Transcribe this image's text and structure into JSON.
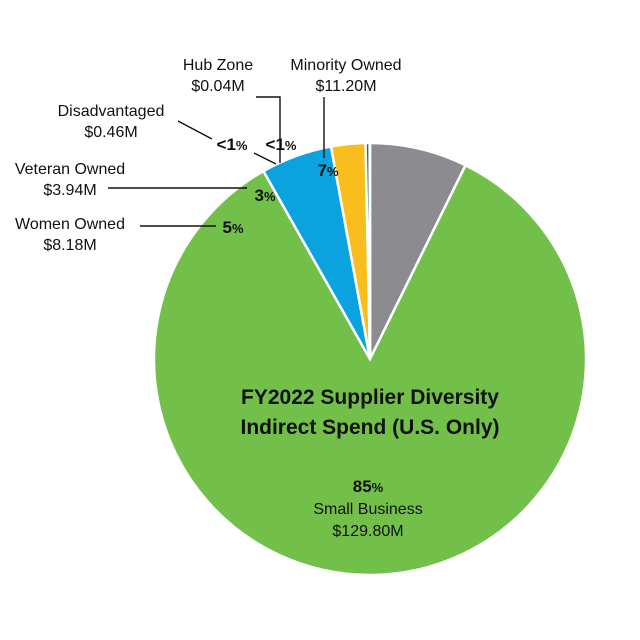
{
  "chart_data": {
    "type": "pie",
    "title": "FY2022 Supplier Diversity Indirect Spend (U.S. Only)",
    "title_lines": [
      "FY2022 Supplier Diversity",
      "Indirect Spend (U.S. Only)"
    ],
    "unit": "$M",
    "slices": [
      {
        "name": "Minority Owned",
        "value": 11.2,
        "amount_label": "$11.20M",
        "percent_label": "7",
        "color": "#8c8b8f"
      },
      {
        "name": "Small Business",
        "value": 129.8,
        "amount_label": "$129.80M",
        "percent_label": "85",
        "color": "#72bf4a"
      },
      {
        "name": "Women Owned",
        "value": 8.18,
        "amount_label": "$8.18M",
        "percent_label": "5",
        "color": "#0aa3df"
      },
      {
        "name": "Veteran Owned",
        "value": 3.94,
        "amount_label": "$3.94M",
        "percent_label": "3",
        "color": "#f9bd1d"
      },
      {
        "name": "Disadvantaged",
        "value": 0.46,
        "amount_label": "$0.46M",
        "percent_label": "<1",
        "color": "#1f6b6d"
      },
      {
        "name": "Hub Zone",
        "value": 0.04,
        "amount_label": "$0.04M",
        "percent_label": "<1",
        "color": "#9ec54a"
      }
    ],
    "percent_symbol": "%"
  }
}
